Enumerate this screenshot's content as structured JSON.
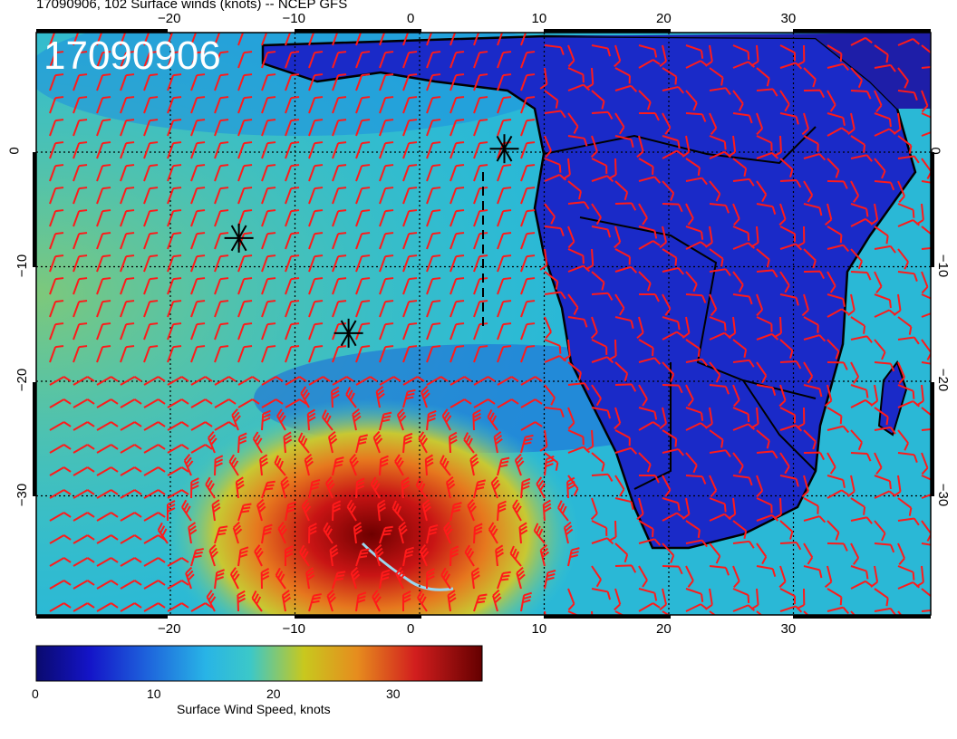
{
  "header": {
    "title": "17090906, 102 Surface winds (knots) -- NCEP GFS",
    "stamp": "17090906"
  },
  "map": {
    "lon_ticks": [
      "−20",
      "−10",
      "0",
      "10",
      "20",
      "30"
    ],
    "lat_ticks": [
      "0",
      "−10",
      "−20",
      "−30"
    ],
    "lon_range": [
      -30,
      42
    ],
    "lat_range": [
      -40,
      10
    ],
    "grid": true,
    "barb_color": "#ff1a1a",
    "coastline_color": "#000000",
    "storm_markers": [
      {
        "name": "storm-center-1",
        "lon": 6.8,
        "lat": 0.3
      },
      {
        "name": "storm-center-2",
        "lon": -14.5,
        "lat": -7.5
      },
      {
        "name": "storm-center-3",
        "lon": -5.7,
        "lat": -15.8
      }
    ]
  },
  "colorbar": {
    "title": "Surface Wind Speed, knots",
    "ticks": [
      "0",
      "10",
      "20",
      "30"
    ],
    "range": [
      0,
      37
    ],
    "colors": [
      "#0a0a6e",
      "#1414c8",
      "#1e64dc",
      "#28b4e6",
      "#3cc8c8",
      "#c8c81e",
      "#e68c1e",
      "#d21e1e",
      "#640000"
    ]
  }
}
